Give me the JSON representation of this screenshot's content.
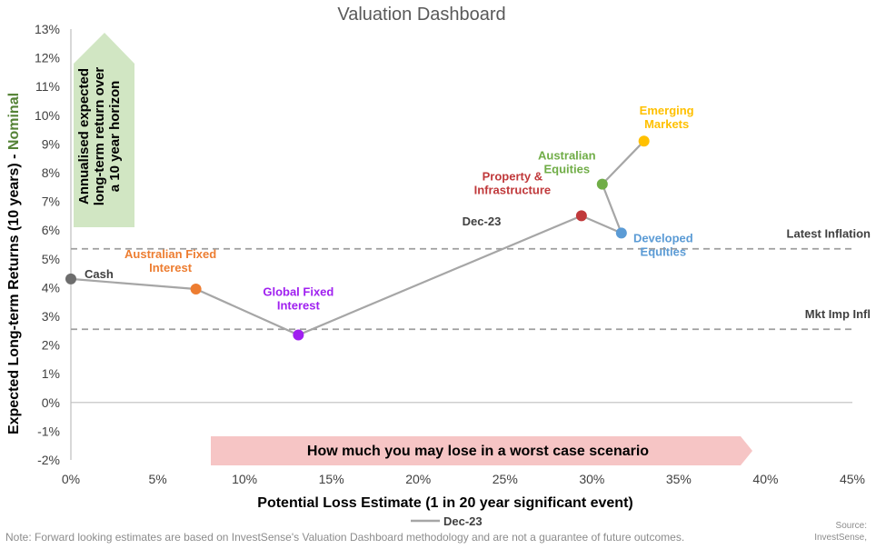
{
  "chart_data": {
    "type": "scatter",
    "title": "Valuation Dashboard",
    "xlabel": "Potential Loss Estimate (1 in 20 year significant event)",
    "ylabel_main": "Expected Long-term Returns (10 years) - ",
    "ylabel_accent": "Nominal",
    "xlim": [
      0,
      45
    ],
    "ylim": [
      -2,
      13
    ],
    "x_ticks": [
      0,
      5,
      10,
      15,
      20,
      25,
      30,
      35,
      40,
      45
    ],
    "y_ticks": [
      -2,
      -1,
      0,
      1,
      2,
      3,
      4,
      5,
      6,
      7,
      8,
      9,
      10,
      11,
      12,
      13
    ],
    "x_tick_labels": [
      "0%",
      "5%",
      "10%",
      "15%",
      "20%",
      "25%",
      "30%",
      "35%",
      "40%",
      "45%"
    ],
    "y_tick_labels": [
      "-2%",
      "-1%",
      "0%",
      "1%",
      "2%",
      "3%",
      "4%",
      "5%",
      "6%",
      "7%",
      "8%",
      "9%",
      "10%",
      "11%",
      "12%",
      "13%"
    ],
    "series": [
      {
        "name": "Dec-23",
        "color": "#a6a6a6",
        "points": [
          {
            "label": "Cash",
            "x": 0,
            "y": 4.3,
            "color": "#6d6d6d",
            "label_color": "#404040"
          },
          {
            "label": "Australian Fixed Interest",
            "x": 7.2,
            "y": 3.95,
            "color": "#ed7d31",
            "label_color": "#ed7d31"
          },
          {
            "label": "Global Fixed Interest",
            "x": 13.1,
            "y": 2.35,
            "color": "#a020f0",
            "label_color": "#a020f0"
          },
          {
            "label": "Property & Infrastructure",
            "x": 29.4,
            "y": 6.5,
            "color": "#c0393b",
            "label_color": "#c0393b"
          },
          {
            "label": "Developed Equities",
            "x": 31.7,
            "y": 5.9,
            "color": "#5b9bd5",
            "label_color": "#5b9bd5"
          },
          {
            "label": "Australian Equities",
            "x": 30.6,
            "y": 7.6,
            "color": "#70ad47",
            "label_color": "#70ad47"
          },
          {
            "label": "Emerging Markets",
            "x": 33.0,
            "y": 9.1,
            "color": "#ffc000",
            "label_color": "#ffc000"
          }
        ]
      }
    ],
    "series_label": "Dec-23",
    "reference_lines": [
      {
        "label": "Latest Inflation",
        "y": 5.35
      },
      {
        "label": "Mkt Imp Infl",
        "y": 2.55
      }
    ],
    "annotations": {
      "vertical_arrow_text": [
        "Annualised expected",
        "long-term return over",
        "a 10 year horizon"
      ],
      "horizontal_arrow_text": "How much you may lose in a worst case scenario"
    },
    "legend": {
      "label": "Dec-23",
      "placement": "bottom-center"
    }
  },
  "footer": {
    "note": "Note: Forward looking estimates are based on InvestSense's Valuation Dashboard methodology and are not a guarantee of future outcomes.",
    "source_line1": "Source:",
    "source_line2": "InvestSense,"
  }
}
